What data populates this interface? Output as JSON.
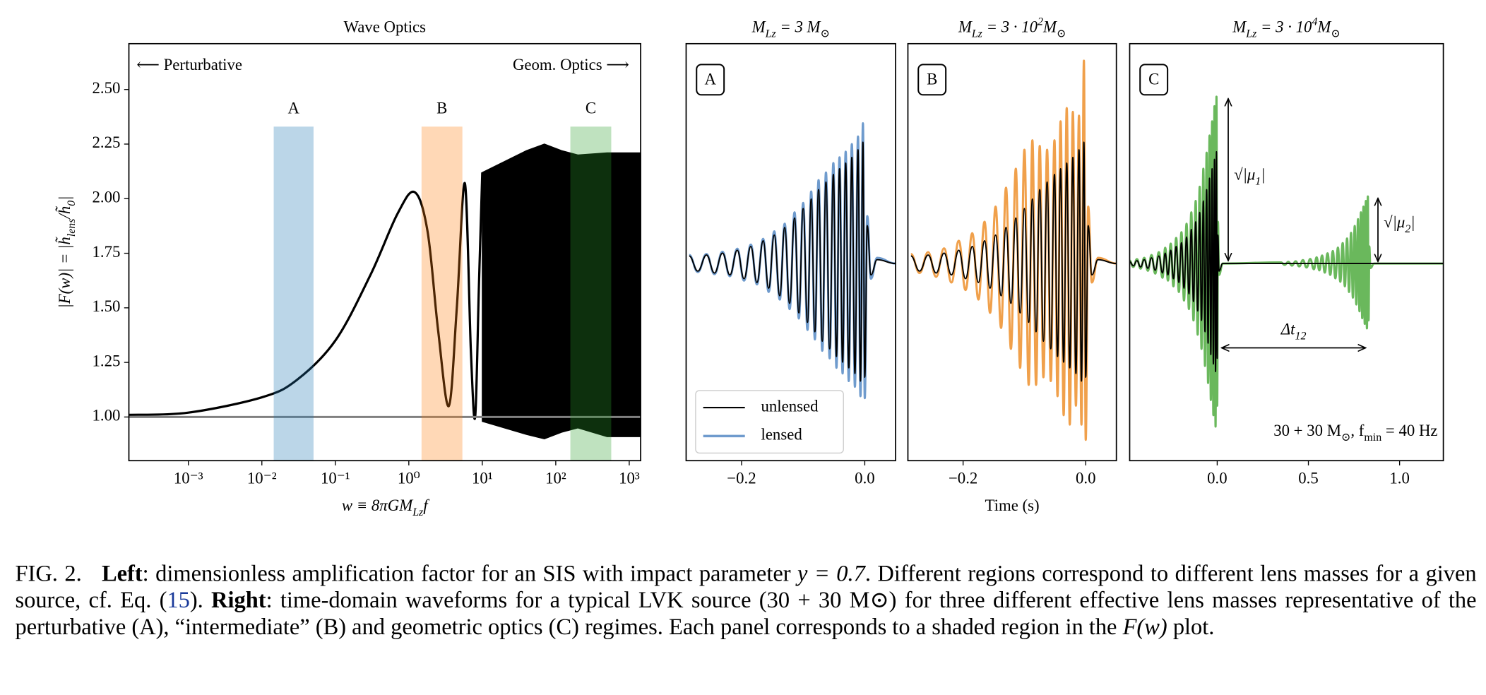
{
  "chart_data": [
    {
      "type": "line",
      "title": "Wave Optics",
      "xlabel": [
        "w ≡ 8πGM",
        {
          "sub": "Lz"
        },
        "f"
      ],
      "ylabel": [
        "|F(w)| = |h̃",
        {
          "sub": "lens"
        },
        "/h̃",
        {
          "sub": "0"
        },
        "|"
      ],
      "xscale": "log",
      "xlim": [
        0.000155,
        1430
      ],
      "ylim": [
        0.8,
        2.71
      ],
      "xticks": [
        {
          "value": 0.001,
          "label": "10⁻³"
        },
        {
          "value": 0.01,
          "label": "10⁻²"
        },
        {
          "value": 0.1,
          "label": "10⁻¹"
        },
        {
          "value": 1,
          "label": "10⁰"
        },
        {
          "value": 10,
          "label": "10¹"
        },
        {
          "value": 100,
          "label": "10²"
        },
        {
          "value": 1000,
          "label": "10³"
        }
      ],
      "yticks": [
        {
          "value": 1,
          "label": "1.00"
        },
        {
          "value": 1.25,
          "label": "1.25"
        },
        {
          "value": 1.5,
          "label": "1.50"
        },
        {
          "value": 1.75,
          "label": "1.75"
        },
        {
          "value": 2,
          "label": "2.00"
        },
        {
          "value": 2.25,
          "label": "2.25"
        },
        {
          "value": 2.5,
          "label": "2.50"
        }
      ],
      "x": [
        0.000155,
        0.001,
        0.01,
        0.03,
        0.1,
        0.3,
        0.7,
        1.2,
        1.8,
        2.5,
        3.5,
        4.5,
        5.8,
        7,
        8,
        9,
        10
      ],
      "series": [
        {
          "color": "#000000",
          "values": [
            1.01,
            1.02,
            1.09,
            1.17,
            1.35,
            1.65,
            1.93,
            2.03,
            1.85,
            1.4,
            1.05,
            1.5,
            2.07,
            1.3,
            1.0,
            1.6,
            2.12
          ]
        }
      ],
      "envelope": {
        "color": "#000000",
        "x": [
          10,
          20,
          40,
          70,
          120,
          200,
          500,
          1430
        ],
        "upper": [
          2.12,
          2.17,
          2.22,
          2.25,
          2.22,
          2.2,
          2.21,
          2.21
        ],
        "lower": [
          0.98,
          0.95,
          0.92,
          0.9,
          0.93,
          0.95,
          0.91,
          0.91
        ]
      },
      "hline": {
        "value": 1,
        "color": "#808080"
      },
      "bands": [
        {
          "label": "A",
          "range": [
            0.0145,
            0.0505
          ],
          "top": 2.33,
          "color": "#1f77b4"
        },
        {
          "label": "B",
          "range": [
            1.49,
            5.36
          ],
          "top": 2.33,
          "color": "#ff7f0e"
        },
        {
          "label": "C",
          "range": [
            158,
            569
          ],
          "top": 2.33,
          "color": "#2ca02c"
        }
      ],
      "left_note": "⟵ Perturbative",
      "right_note": "Geom. Optics ⟶"
    },
    {
      "type": "waveform",
      "title": [
        "M",
        {
          "sub": "Lz"
        },
        " = 3 M",
        {
          "sub": "⊙"
        }
      ],
      "panel_label": "A",
      "xlim": [
        -0.29,
        0.05
      ],
      "ylim": [
        -1.04,
        1.16
      ],
      "xticks": [
        {
          "value": -0.2,
          "label": "−0.2"
        },
        {
          "value": 0,
          "label": "0.0"
        }
      ],
      "legend": true,
      "legend_loc": "lower left",
      "x": [
        -0.285,
        -0.271,
        -0.257,
        -0.244,
        -0.231,
        -0.219,
        -0.207,
        -0.196,
        -0.185,
        -0.175,
        -0.165,
        -0.156,
        -0.147,
        -0.138,
        -0.13,
        -0.122,
        -0.114,
        -0.107,
        -0.1,
        -0.093,
        -0.087,
        -0.081,
        -0.075,
        -0.069,
        -0.063,
        -0.057,
        -0.051,
        -0.046,
        -0.041,
        -0.036,
        -0.031,
        -0.026,
        -0.021,
        -0.016,
        -0.011,
        -0.007,
        -0.003,
        0.0,
        0.004,
        0.01,
        0.02,
        0.05
      ],
      "series": [
        {
          "name": "unlensed",
          "color": "#000000",
          "values": [
            0.04,
            -0.04,
            0.045,
            -0.05,
            0.055,
            -0.06,
            0.07,
            -0.08,
            0.09,
            -0.1,
            0.12,
            -0.13,
            0.15,
            -0.17,
            0.19,
            -0.21,
            0.24,
            -0.26,
            0.29,
            -0.31,
            0.34,
            -0.36,
            0.39,
            -0.41,
            0.43,
            -0.45,
            0.47,
            -0.49,
            0.5,
            -0.52,
            0.53,
            -0.55,
            0.56,
            -0.58,
            0.6,
            -0.62,
            0.64,
            -0.6,
            0.2,
            -0.06,
            0.02,
            0.0
          ]
        },
        {
          "name": "lensed",
          "color": "#6f9bcd",
          "values": [
            0.045,
            -0.045,
            0.05,
            -0.056,
            0.062,
            -0.067,
            0.078,
            -0.09,
            0.1,
            -0.11,
            0.13,
            -0.15,
            0.17,
            -0.19,
            0.21,
            -0.24,
            0.27,
            -0.29,
            0.32,
            -0.35,
            0.38,
            -0.4,
            0.44,
            -0.46,
            0.48,
            -0.5,
            0.53,
            -0.55,
            0.56,
            -0.58,
            0.59,
            -0.62,
            0.63,
            -0.65,
            0.67,
            -0.7,
            0.74,
            -0.71,
            0.25,
            -0.08,
            0.03,
            0.0
          ]
        }
      ]
    },
    {
      "type": "waveform",
      "title": [
        "M",
        {
          "sub": "Lz"
        },
        " = 3 · 10",
        {
          "sup": "2"
        },
        "M",
        {
          "sub": "⊙"
        }
      ],
      "panel_label": "B",
      "xlim": [
        -0.29,
        0.05
      ],
      "ylim": [
        -1.04,
        1.16
      ],
      "xlabel": "Time (s)",
      "xticks": [
        {
          "value": -0.2,
          "label": "−0.2"
        },
        {
          "value": 0,
          "label": "0.0"
        }
      ],
      "x": [
        -0.285,
        -0.271,
        -0.257,
        -0.244,
        -0.231,
        -0.219,
        -0.207,
        -0.196,
        -0.185,
        -0.175,
        -0.165,
        -0.156,
        -0.147,
        -0.138,
        -0.13,
        -0.122,
        -0.114,
        -0.107,
        -0.1,
        -0.093,
        -0.087,
        -0.081,
        -0.075,
        -0.069,
        -0.063,
        -0.057,
        -0.051,
        -0.046,
        -0.041,
        -0.036,
        -0.031,
        -0.026,
        -0.021,
        -0.016,
        -0.011,
        -0.007,
        -0.003,
        0.0,
        0.004,
        0.01,
        0.02,
        0.05
      ],
      "series": [
        {
          "color": "#000000",
          "values": [
            0.04,
            -0.04,
            0.045,
            -0.05,
            0.055,
            -0.06,
            0.07,
            -0.08,
            0.09,
            -0.1,
            0.12,
            -0.13,
            0.15,
            -0.17,
            0.19,
            -0.21,
            0.24,
            -0.26,
            0.29,
            -0.31,
            0.34,
            -0.36,
            0.39,
            -0.41,
            0.43,
            -0.45,
            0.47,
            -0.49,
            0.5,
            -0.52,
            0.53,
            -0.55,
            0.56,
            -0.58,
            0.6,
            -0.62,
            0.64,
            -0.6,
            0.2,
            -0.06,
            0.02,
            0.0
          ]
        },
        {
          "color": "#f0a04b",
          "values": [
            0.05,
            -0.05,
            0.06,
            -0.07,
            0.08,
            -0.1,
            0.12,
            -0.14,
            0.16,
            -0.19,
            0.22,
            -0.26,
            0.3,
            -0.34,
            0.4,
            -0.45,
            0.5,
            -0.55,
            0.6,
            -0.64,
            0.65,
            -0.64,
            0.62,
            -0.6,
            0.6,
            -0.62,
            0.65,
            -0.7,
            0.75,
            -0.8,
            0.82,
            -0.85,
            0.8,
            -0.75,
            0.78,
            -0.85,
            1.07,
            -0.93,
            0.3,
            -0.1,
            0.03,
            0.0
          ]
        }
      ]
    },
    {
      "type": "waveform",
      "title": [
        "M",
        {
          "sub": "Lz"
        },
        " = 3 · 10",
        {
          "sup": "4"
        },
        "M",
        {
          "sub": "⊙"
        }
      ],
      "panel_label": "C",
      "xlim": [
        -0.48,
        1.24
      ],
      "ylim": [
        -1.04,
        1.16
      ],
      "xticks": [
        {
          "value": 0,
          "label": "0.0"
        },
        {
          "value": 0.5,
          "label": "0.5"
        },
        {
          "value": 1,
          "label": "1.0"
        }
      ],
      "series": [
        {
          "color": "#000000",
          "x": [
            -0.48,
            -0.46,
            -0.44,
            -0.42,
            -0.4,
            -0.38,
            -0.36,
            -0.34,
            -0.32,
            -0.3,
            -0.285,
            -0.27,
            -0.255,
            -0.24,
            -0.225,
            -0.21,
            -0.196,
            -0.182,
            -0.168,
            -0.155,
            -0.142,
            -0.13,
            -0.118,
            -0.107,
            -0.096,
            -0.086,
            -0.076,
            -0.067,
            -0.058,
            -0.05,
            -0.042,
            -0.035,
            -0.028,
            -0.021,
            -0.015,
            -0.009,
            -0.004,
            0.0,
            0.004,
            0.01,
            0.03,
            1.24
          ],
          "values": [
            0.01,
            -0.012,
            0.015,
            -0.018,
            0.02,
            -0.025,
            0.03,
            -0.035,
            0.04,
            -0.05,
            0.055,
            -0.06,
            0.07,
            -0.08,
            0.09,
            -0.1,
            0.11,
            -0.13,
            0.14,
            -0.16,
            0.18,
            -0.2,
            0.22,
            -0.25,
            0.27,
            -0.3,
            0.33,
            -0.36,
            0.39,
            -0.42,
            0.45,
            -0.48,
            0.5,
            -0.53,
            0.55,
            -0.57,
            0.59,
            -0.5,
            0.15,
            -0.04,
            0,
            0
          ]
        },
        {
          "color": "#6ab85c",
          "x": [
            -0.48,
            -0.46,
            -0.44,
            -0.42,
            -0.4,
            -0.38,
            -0.36,
            -0.34,
            -0.32,
            -0.3,
            -0.285,
            -0.27,
            -0.255,
            -0.24,
            -0.225,
            -0.21,
            -0.196,
            -0.182,
            -0.168,
            -0.155,
            -0.142,
            -0.13,
            -0.118,
            -0.107,
            -0.096,
            -0.086,
            -0.076,
            -0.067,
            -0.058,
            -0.05,
            -0.042,
            -0.035,
            -0.028,
            -0.021,
            -0.015,
            -0.009,
            -0.004,
            0.0,
            0.004,
            0.01,
            0.03,
            0.35,
            0.37,
            0.39,
            0.41,
            0.43,
            0.45,
            0.47,
            0.49,
            0.51,
            0.53,
            0.545,
            0.56,
            0.575,
            0.59,
            0.605,
            0.62,
            0.634,
            0.648,
            0.662,
            0.675,
            0.688,
            0.7,
            0.712,
            0.723,
            0.734,
            0.744,
            0.754,
            0.763,
            0.772,
            0.78,
            0.788,
            0.795,
            0.802,
            0.809,
            0.815,
            0.821,
            0.826,
            0.83,
            0.834,
            0.84,
            0.86,
            1.24
          ],
          "values": [
            0.015,
            -0.018,
            0.023,
            -0.027,
            0.03,
            -0.038,
            0.045,
            -0.053,
            0.06,
            -0.075,
            0.083,
            -0.09,
            0.105,
            -0.12,
            0.135,
            -0.15,
            0.165,
            -0.195,
            0.21,
            -0.24,
            0.27,
            -0.3,
            0.33,
            -0.375,
            0.405,
            -0.45,
            0.5,
            -0.54,
            0.585,
            -0.63,
            0.675,
            -0.72,
            0.75,
            -0.8,
            0.83,
            -0.86,
            0.88,
            -0.75,
            0.22,
            -0.06,
            0,
            0.006,
            -0.007,
            0.009,
            -0.011,
            0.012,
            -0.015,
            0.018,
            -0.021,
            0.024,
            -0.03,
            0.033,
            -0.036,
            0.042,
            -0.048,
            0.054,
            -0.06,
            0.066,
            -0.078,
            0.084,
            -0.096,
            0.108,
            -0.12,
            0.132,
            -0.15,
            0.162,
            -0.18,
            0.198,
            -0.216,
            0.234,
            -0.252,
            0.27,
            -0.288,
            0.3,
            -0.318,
            0.33,
            -0.342,
            0.354,
            -0.3,
            0.09,
            -0.024,
            0,
            0
          ]
        }
      ],
      "annotations": {
        "mu1": [
          "√|μ",
          {
            "sub": "1"
          },
          "|"
        ],
        "mu2": [
          "√|μ",
          {
            "sub": "2"
          },
          "|"
        ],
        "dt": [
          "Δt",
          {
            "sub": "12"
          }
        ],
        "note": [
          "30 + 30 M",
          {
            "sub": "⊙"
          },
          ", f",
          {
            "sub": "min"
          },
          " = 40 Hz"
        ]
      }
    }
  ],
  "caption": {
    "label": "FIG. 2.",
    "left_label": "Left",
    "left_text": ": dimensionless amplification factor for an SIS with impact parameter ",
    "left_math": "y = 0.7",
    "left_text2": ". Different regions correspond to different lens masses for a given source, cf. Eq. (",
    "ref": "15",
    "left_text3": "). ",
    "right_label": "Right",
    "right_text": ": time-domain waveforms for a typical LVK source (30 + 30 M⊙) for three different effective lens masses representative of the perturbative (A), “intermediate” (B) and geometric optics (C) regimes. Each panel corresponds to a shaded region in the ",
    "right_math": "F(w)",
    "right_text2": " plot."
  }
}
